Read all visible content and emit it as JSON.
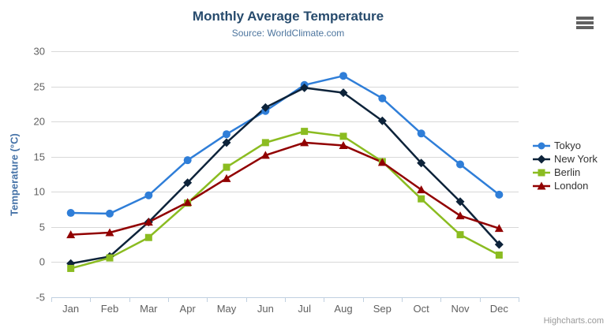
{
  "header": {
    "title": "Monthly Average Temperature",
    "subtitle": "Source: WorldClimate.com"
  },
  "export_menu": {
    "icon": "hamburger-menu-icon"
  },
  "credits": {
    "label": "Highcharts.com"
  },
  "chart_data": {
    "type": "line",
    "title": "Monthly Average Temperature",
    "subtitle": "Source: WorldClimate.com",
    "categories": [
      "Jan",
      "Feb",
      "Mar",
      "Apr",
      "May",
      "Jun",
      "Jul",
      "Aug",
      "Sep",
      "Oct",
      "Nov",
      "Dec"
    ],
    "series": [
      {
        "name": "Tokyo",
        "color": "#2f7ed8",
        "marker": "circle",
        "values": [
          7.0,
          6.9,
          9.5,
          14.5,
          18.2,
          21.5,
          25.2,
          26.5,
          23.3,
          18.3,
          13.9,
          9.6
        ]
      },
      {
        "name": "New York",
        "color": "#0d233a",
        "marker": "diamond",
        "values": [
          -0.2,
          0.8,
          5.7,
          11.3,
          17.0,
          22.0,
          24.8,
          24.1,
          20.1,
          14.1,
          8.6,
          2.5
        ]
      },
      {
        "name": "Berlin",
        "color": "#8bbc21",
        "marker": "square",
        "values": [
          -0.9,
          0.6,
          3.5,
          8.4,
          13.5,
          17.0,
          18.6,
          17.9,
          14.3,
          9.0,
          3.9,
          1.0
        ]
      },
      {
        "name": "London",
        "color": "#910000",
        "marker": "triangle",
        "values": [
          3.9,
          4.2,
          5.7,
          8.5,
          11.9,
          15.2,
          17.0,
          16.6,
          14.2,
          10.3,
          6.6,
          4.8
        ]
      }
    ],
    "xlabel": "",
    "ylabel": "Temperature (°C)",
    "ylim": [
      -5,
      30
    ],
    "yticks": [
      -5,
      0,
      5,
      10,
      15,
      20,
      25,
      30
    ],
    "grid": true,
    "legend_position": "right"
  }
}
